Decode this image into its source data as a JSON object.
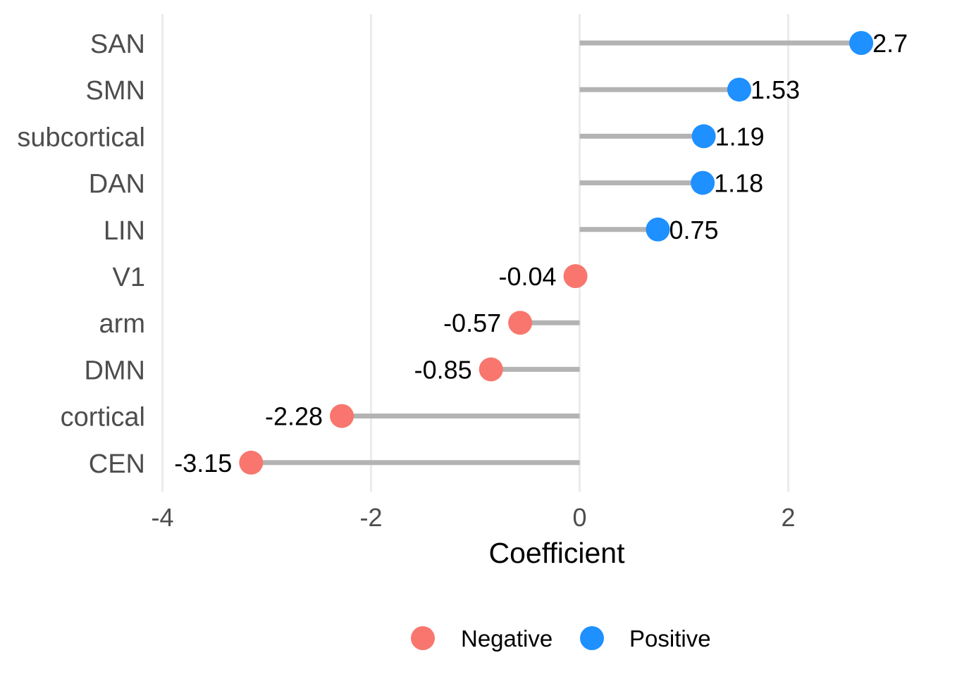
{
  "chart_data": {
    "type": "lollipop",
    "categories": [
      "SAN",
      "SMN",
      "subcortical",
      "DAN",
      "LIN",
      "V1",
      "arm",
      "DMN",
      "cortical",
      "CEN"
    ],
    "values": [
      2.7,
      1.53,
      1.19,
      1.18,
      0.75,
      -0.04,
      -0.57,
      -0.85,
      -2.28,
      -3.15
    ],
    "value_labels": [
      "2.7",
      "1.53",
      "1.19",
      "1.18",
      "0.75",
      "-0.04",
      "-0.57",
      "-0.85",
      "-2.28",
      "-3.15"
    ],
    "groups": [
      "Positive",
      "Positive",
      "Positive",
      "Positive",
      "Positive",
      "Negative",
      "Negative",
      "Negative",
      "Negative",
      "Negative"
    ],
    "xlabel": "Coefficient",
    "ylabel": "",
    "xlim": [
      -4,
      3.2
    ],
    "xticks": [
      -4,
      -2,
      0,
      2
    ],
    "xtick_labels": [
      "-4",
      "-2",
      "0",
      "2"
    ],
    "grid": "vertical major",
    "legend_position": "bottom",
    "legend": [
      {
        "name": "Negative",
        "color": "#F8766D"
      },
      {
        "name": "Positive",
        "color": "#1E90FF"
      }
    ],
    "stem_color": "#B3B3B3",
    "grid_color": "#EBEBEB"
  }
}
